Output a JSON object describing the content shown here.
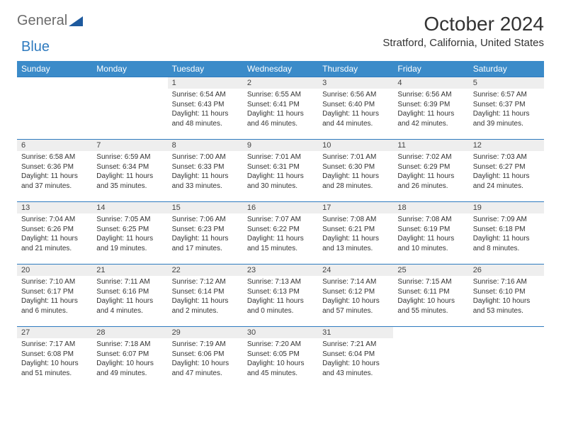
{
  "logo": {
    "text1": "General",
    "text2": "Blue"
  },
  "title": "October 2024",
  "location": "Stratford, California, United States",
  "colors": {
    "header_bg": "#3b8bc9",
    "header_fg": "#ffffff",
    "daynum_bg": "#eeeeee",
    "border": "#2f7bbf",
    "page_bg": "#ffffff",
    "text": "#333333",
    "logo_gray": "#6b6b6b",
    "logo_blue": "#2f7bbf"
  },
  "weekdays": [
    "Sunday",
    "Monday",
    "Tuesday",
    "Wednesday",
    "Thursday",
    "Friday",
    "Saturday"
  ],
  "grid": {
    "rows": 5,
    "cols": 7
  },
  "cells": [
    {
      "empty": true
    },
    {
      "empty": true
    },
    {
      "n": "1",
      "sr": "Sunrise: 6:54 AM",
      "ss": "Sunset: 6:43 PM",
      "d1": "Daylight: 11 hours",
      "d2": "and 48 minutes."
    },
    {
      "n": "2",
      "sr": "Sunrise: 6:55 AM",
      "ss": "Sunset: 6:41 PM",
      "d1": "Daylight: 11 hours",
      "d2": "and 46 minutes."
    },
    {
      "n": "3",
      "sr": "Sunrise: 6:56 AM",
      "ss": "Sunset: 6:40 PM",
      "d1": "Daylight: 11 hours",
      "d2": "and 44 minutes."
    },
    {
      "n": "4",
      "sr": "Sunrise: 6:56 AM",
      "ss": "Sunset: 6:39 PM",
      "d1": "Daylight: 11 hours",
      "d2": "and 42 minutes."
    },
    {
      "n": "5",
      "sr": "Sunrise: 6:57 AM",
      "ss": "Sunset: 6:37 PM",
      "d1": "Daylight: 11 hours",
      "d2": "and 39 minutes."
    },
    {
      "n": "6",
      "sr": "Sunrise: 6:58 AM",
      "ss": "Sunset: 6:36 PM",
      "d1": "Daylight: 11 hours",
      "d2": "and 37 minutes."
    },
    {
      "n": "7",
      "sr": "Sunrise: 6:59 AM",
      "ss": "Sunset: 6:34 PM",
      "d1": "Daylight: 11 hours",
      "d2": "and 35 minutes."
    },
    {
      "n": "8",
      "sr": "Sunrise: 7:00 AM",
      "ss": "Sunset: 6:33 PM",
      "d1": "Daylight: 11 hours",
      "d2": "and 33 minutes."
    },
    {
      "n": "9",
      "sr": "Sunrise: 7:01 AM",
      "ss": "Sunset: 6:31 PM",
      "d1": "Daylight: 11 hours",
      "d2": "and 30 minutes."
    },
    {
      "n": "10",
      "sr": "Sunrise: 7:01 AM",
      "ss": "Sunset: 6:30 PM",
      "d1": "Daylight: 11 hours",
      "d2": "and 28 minutes."
    },
    {
      "n": "11",
      "sr": "Sunrise: 7:02 AM",
      "ss": "Sunset: 6:29 PM",
      "d1": "Daylight: 11 hours",
      "d2": "and 26 minutes."
    },
    {
      "n": "12",
      "sr": "Sunrise: 7:03 AM",
      "ss": "Sunset: 6:27 PM",
      "d1": "Daylight: 11 hours",
      "d2": "and 24 minutes."
    },
    {
      "n": "13",
      "sr": "Sunrise: 7:04 AM",
      "ss": "Sunset: 6:26 PM",
      "d1": "Daylight: 11 hours",
      "d2": "and 21 minutes."
    },
    {
      "n": "14",
      "sr": "Sunrise: 7:05 AM",
      "ss": "Sunset: 6:25 PM",
      "d1": "Daylight: 11 hours",
      "d2": "and 19 minutes."
    },
    {
      "n": "15",
      "sr": "Sunrise: 7:06 AM",
      "ss": "Sunset: 6:23 PM",
      "d1": "Daylight: 11 hours",
      "d2": "and 17 minutes."
    },
    {
      "n": "16",
      "sr": "Sunrise: 7:07 AM",
      "ss": "Sunset: 6:22 PM",
      "d1": "Daylight: 11 hours",
      "d2": "and 15 minutes."
    },
    {
      "n": "17",
      "sr": "Sunrise: 7:08 AM",
      "ss": "Sunset: 6:21 PM",
      "d1": "Daylight: 11 hours",
      "d2": "and 13 minutes."
    },
    {
      "n": "18",
      "sr": "Sunrise: 7:08 AM",
      "ss": "Sunset: 6:19 PM",
      "d1": "Daylight: 11 hours",
      "d2": "and 10 minutes."
    },
    {
      "n": "19",
      "sr": "Sunrise: 7:09 AM",
      "ss": "Sunset: 6:18 PM",
      "d1": "Daylight: 11 hours",
      "d2": "and 8 minutes."
    },
    {
      "n": "20",
      "sr": "Sunrise: 7:10 AM",
      "ss": "Sunset: 6:17 PM",
      "d1": "Daylight: 11 hours",
      "d2": "and 6 minutes."
    },
    {
      "n": "21",
      "sr": "Sunrise: 7:11 AM",
      "ss": "Sunset: 6:16 PM",
      "d1": "Daylight: 11 hours",
      "d2": "and 4 minutes."
    },
    {
      "n": "22",
      "sr": "Sunrise: 7:12 AM",
      "ss": "Sunset: 6:14 PM",
      "d1": "Daylight: 11 hours",
      "d2": "and 2 minutes."
    },
    {
      "n": "23",
      "sr": "Sunrise: 7:13 AM",
      "ss": "Sunset: 6:13 PM",
      "d1": "Daylight: 11 hours",
      "d2": "and 0 minutes."
    },
    {
      "n": "24",
      "sr": "Sunrise: 7:14 AM",
      "ss": "Sunset: 6:12 PM",
      "d1": "Daylight: 10 hours",
      "d2": "and 57 minutes."
    },
    {
      "n": "25",
      "sr": "Sunrise: 7:15 AM",
      "ss": "Sunset: 6:11 PM",
      "d1": "Daylight: 10 hours",
      "d2": "and 55 minutes."
    },
    {
      "n": "26",
      "sr": "Sunrise: 7:16 AM",
      "ss": "Sunset: 6:10 PM",
      "d1": "Daylight: 10 hours",
      "d2": "and 53 minutes."
    },
    {
      "n": "27",
      "sr": "Sunrise: 7:17 AM",
      "ss": "Sunset: 6:08 PM",
      "d1": "Daylight: 10 hours",
      "d2": "and 51 minutes."
    },
    {
      "n": "28",
      "sr": "Sunrise: 7:18 AM",
      "ss": "Sunset: 6:07 PM",
      "d1": "Daylight: 10 hours",
      "d2": "and 49 minutes."
    },
    {
      "n": "29",
      "sr": "Sunrise: 7:19 AM",
      "ss": "Sunset: 6:06 PM",
      "d1": "Daylight: 10 hours",
      "d2": "and 47 minutes."
    },
    {
      "n": "30",
      "sr": "Sunrise: 7:20 AM",
      "ss": "Sunset: 6:05 PM",
      "d1": "Daylight: 10 hours",
      "d2": "and 45 minutes."
    },
    {
      "n": "31",
      "sr": "Sunrise: 7:21 AM",
      "ss": "Sunset: 6:04 PM",
      "d1": "Daylight: 10 hours",
      "d2": "and 43 minutes."
    },
    {
      "empty": true
    },
    {
      "empty": true
    }
  ]
}
